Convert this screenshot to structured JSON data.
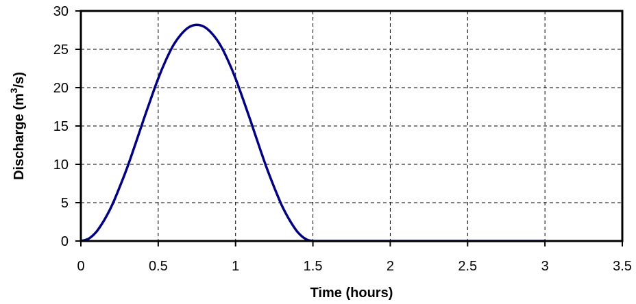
{
  "chart_data": {
    "type": "line",
    "title": "",
    "xlabel": "Time (hours)",
    "ylabel": "Discharge (m³/s)",
    "ylabel_parts": {
      "main": "Discharge (m",
      "sup": "3",
      "tail": "/s)"
    },
    "xlim": [
      0,
      3.5
    ],
    "ylim": [
      0,
      30
    ],
    "x_ticks": [
      0,
      0.5,
      1,
      1.5,
      2,
      2.5,
      3,
      3.5
    ],
    "x_tick_labels": [
      "0",
      "0.5",
      "1",
      "1.5",
      "2",
      "2.5",
      "3",
      "3.5"
    ],
    "y_ticks": [
      0,
      5,
      10,
      15,
      20,
      25,
      30
    ],
    "y_tick_labels": [
      "0",
      "5",
      "10",
      "15",
      "20",
      "25",
      "30"
    ],
    "grid": true,
    "legend": "none",
    "series": [
      {
        "color": "#000080",
        "x": [
          0,
          0.05,
          0.1,
          0.15,
          0.2,
          0.25,
          0.3,
          0.35,
          0.4,
          0.45,
          0.5,
          0.55,
          0.6,
          0.65,
          0.7,
          0.75,
          0.8,
          0.85,
          0.9,
          0.95,
          1.0,
          1.05,
          1.1,
          1.15,
          1.2,
          1.25,
          1.3,
          1.35,
          1.4,
          1.45,
          1.5,
          1.6,
          1.8,
          2.0,
          2.2,
          2.4,
          2.6,
          2.8,
          3.0
        ],
        "y": [
          0,
          0.3,
          1.2,
          2.7,
          4.6,
          7.0,
          9.6,
          12.5,
          15.5,
          18.4,
          21.2,
          23.6,
          25.6,
          27.0,
          27.9,
          28.2,
          27.9,
          27.0,
          25.6,
          23.6,
          21.2,
          18.4,
          15.5,
          12.5,
          9.6,
          7.0,
          4.6,
          2.7,
          1.2,
          0.3,
          0,
          0,
          0,
          0,
          0,
          0,
          0,
          0,
          0
        ]
      }
    ]
  }
}
